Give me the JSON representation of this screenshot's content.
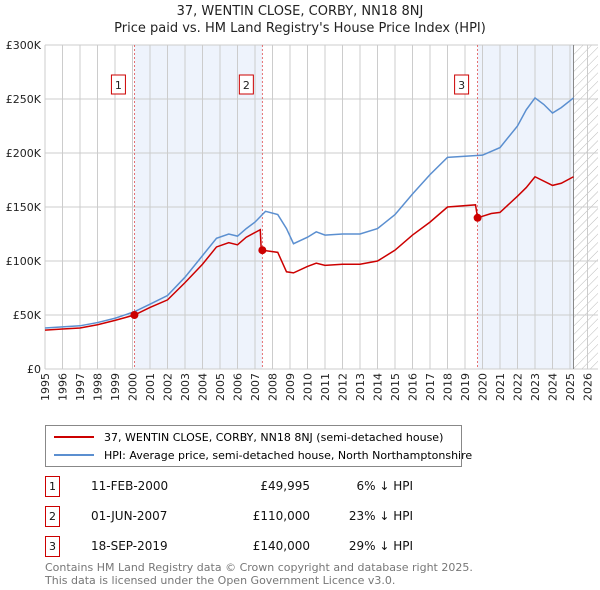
{
  "chart_data": {
    "type": "line",
    "title": "37, WENTIN CLOSE, CORBY, NN18 8NJ",
    "subtitle": "Price paid vs. HM Land Registry's House Price Index (HPI)",
    "xlim": [
      1995,
      2026.6
    ],
    "ylim": [
      0,
      300000
    ],
    "x_ticks": [
      "1995",
      "1996",
      "1997",
      "1998",
      "1999",
      "2000",
      "2001",
      "2002",
      "2003",
      "2004",
      "2005",
      "2006",
      "2007",
      "2008",
      "2009",
      "2010",
      "2011",
      "2012",
      "2013",
      "2014",
      "2015",
      "2016",
      "2017",
      "2018",
      "2019",
      "2020",
      "2021",
      "2022",
      "2023",
      "2024",
      "2025",
      "2026"
    ],
    "y_ticks": [
      {
        "v": 0,
        "label": "£0"
      },
      {
        "v": 50000,
        "label": "£50K"
      },
      {
        "v": 100000,
        "label": "£100K"
      },
      {
        "v": 150000,
        "label": "£150K"
      },
      {
        "v": 200000,
        "label": "£200K"
      },
      {
        "v": 250000,
        "label": "£250K"
      },
      {
        "v": 300000,
        "label": "£300K"
      }
    ],
    "grid": true,
    "series": [
      {
        "name": "37, WENTIN CLOSE, CORBY, NN18 8NJ (semi-detached house)",
        "color": "#cc0000",
        "points": [
          [
            1995,
            36000
          ],
          [
            1996,
            37000
          ],
          [
            1997,
            38000
          ],
          [
            1998,
            41000
          ],
          [
            1999,
            45000
          ],
          [
            2000.11,
            49995
          ],
          [
            2001,
            57000
          ],
          [
            2002,
            64000
          ],
          [
            2003,
            80000
          ],
          [
            2004,
            97000
          ],
          [
            2004.8,
            113000
          ],
          [
            2005.5,
            117000
          ],
          [
            2006,
            115000
          ],
          [
            2006.5,
            122000
          ],
          [
            2007.3,
            129000
          ],
          [
            2007.35,
            112000
          ],
          [
            2007.42,
            110000
          ],
          [
            2008.3,
            108000
          ],
          [
            2008.8,
            90000
          ],
          [
            2009.2,
            89000
          ],
          [
            2010,
            95000
          ],
          [
            2010.5,
            98000
          ],
          [
            2011,
            96000
          ],
          [
            2012,
            97000
          ],
          [
            2013,
            97000
          ],
          [
            2014,
            100000
          ],
          [
            2015,
            110000
          ],
          [
            2016,
            124000
          ],
          [
            2017,
            136000
          ],
          [
            2018,
            150000
          ],
          [
            2019.6,
            152000
          ],
          [
            2019.72,
            140000
          ],
          [
            2020.5,
            144000
          ],
          [
            2021,
            145000
          ],
          [
            2022,
            160000
          ],
          [
            2022.5,
            168000
          ],
          [
            2023,
            178000
          ],
          [
            2024,
            170000
          ],
          [
            2024.5,
            172000
          ],
          [
            2025.2,
            178000
          ]
        ]
      },
      {
        "name": "HPI: Average price, semi-detached house, North Northamptonshire",
        "color": "#5b8fd0",
        "points": [
          [
            1995,
            38000
          ],
          [
            1996,
            39000
          ],
          [
            1997,
            40000
          ],
          [
            1998,
            43000
          ],
          [
            1999,
            47000
          ],
          [
            2000.1,
            53000
          ],
          [
            2001,
            60000
          ],
          [
            2002,
            68000
          ],
          [
            2003,
            85000
          ],
          [
            2004,
            105000
          ],
          [
            2004.8,
            121000
          ],
          [
            2005.5,
            125000
          ],
          [
            2006,
            123000
          ],
          [
            2006.5,
            130000
          ],
          [
            2007,
            136000
          ],
          [
            2007.6,
            146000
          ],
          [
            2008.3,
            143000
          ],
          [
            2008.8,
            130000
          ],
          [
            2009.2,
            116000
          ],
          [
            2010,
            122000
          ],
          [
            2010.5,
            127000
          ],
          [
            2011,
            124000
          ],
          [
            2012,
            125000
          ],
          [
            2013,
            125000
          ],
          [
            2014,
            130000
          ],
          [
            2015,
            143000
          ],
          [
            2016,
            162000
          ],
          [
            2017,
            180000
          ],
          [
            2018,
            196000
          ],
          [
            2019,
            197000
          ],
          [
            2020,
            198000
          ],
          [
            2021,
            205000
          ],
          [
            2022,
            225000
          ],
          [
            2022.5,
            240000
          ],
          [
            2023,
            251000
          ],
          [
            2023.5,
            245000
          ],
          [
            2024,
            237000
          ],
          [
            2024.5,
            242000
          ],
          [
            2025.2,
            251000
          ]
        ]
      }
    ],
    "sales": [
      {
        "n": "1",
        "x": 2000.11,
        "y": 49995
      },
      {
        "n": "2",
        "x": 2007.42,
        "y": 110000
      },
      {
        "n": "3",
        "x": 2019.72,
        "y": 140000
      }
    ],
    "shaded_ranges": [
      [
        2000.11,
        2007.42
      ],
      [
        2019.72,
        2025.2
      ]
    ],
    "forecast_hatch_from": 2025.2
  },
  "legend": {
    "red": "37, WENTIN CLOSE, CORBY, NN18 8NJ (semi-detached house)",
    "blue": "HPI: Average price, semi-detached house, North Northamptonshire"
  },
  "sales_table": [
    {
      "n": "1",
      "date": "11-FEB-2000",
      "price": "£49,995",
      "diff": "6% ↓ HPI"
    },
    {
      "n": "2",
      "date": "01-JUN-2007",
      "price": "£110,000",
      "diff": "23% ↓ HPI"
    },
    {
      "n": "3",
      "date": "18-SEP-2019",
      "price": "£140,000",
      "diff": "29% ↓ HPI"
    }
  ],
  "footer": {
    "line1": "Contains HM Land Registry data © Crown copyright and database right 2025.",
    "line2": "This data is licensed under the Open Government Licence v3.0."
  }
}
